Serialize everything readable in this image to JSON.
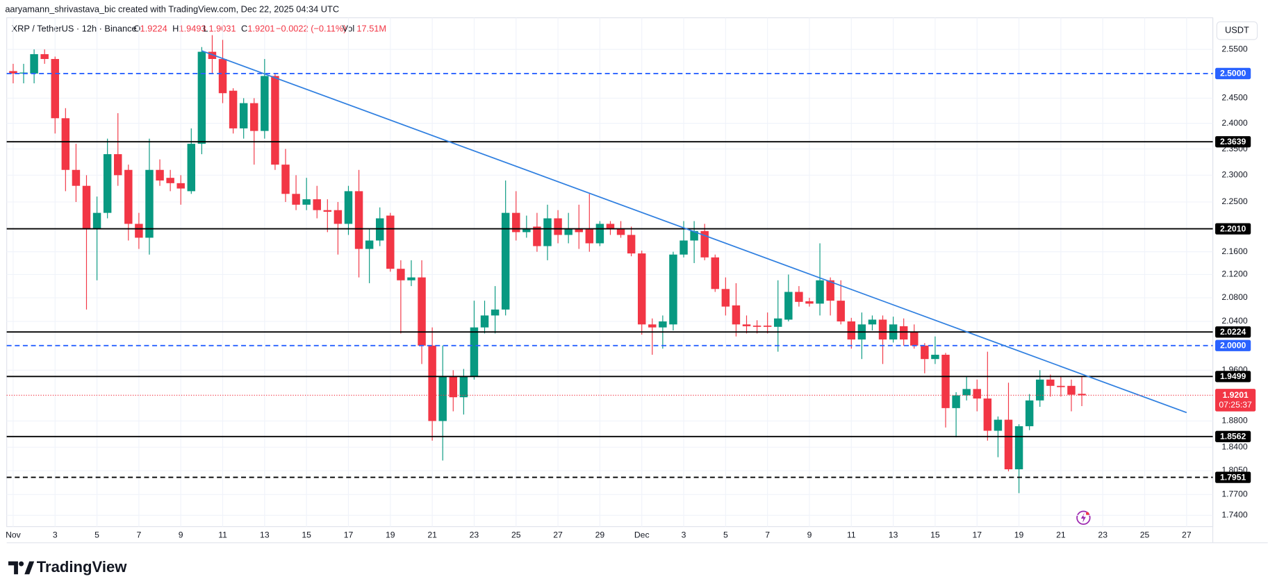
{
  "header": {
    "author_line": "aaryamann_shrivastava_bic created with TradingView.com, Dec 22, 2025 04:34 UTC",
    "symbol": "XRP / TetherUS · 12h · Binance",
    "o": "O",
    "open": "1.9224",
    "h": "H",
    "high": "1.9493",
    "l": "L",
    "low": "1.9031",
    "c": "C",
    "close": "1.9201",
    "change": "−0.0022 (−0.11%)",
    "vol_label": "Vol",
    "volume": "17.51M",
    "currency": "USDT"
  },
  "footer": {
    "brand": "TradingView"
  },
  "chart_data": {
    "type": "candlestick",
    "log_scale": true,
    "grid": true,
    "up_color": "#089981",
    "down_color": "#f23645",
    "categories": [
      "Nov",
      null,
      null,
      null,
      "3",
      null,
      null,
      null,
      "5",
      null,
      null,
      null,
      "7",
      null,
      null,
      null,
      "9",
      null,
      null,
      null,
      "11",
      null,
      null,
      null,
      "13",
      null,
      null,
      null,
      "15",
      null,
      null,
      null,
      "17",
      null,
      null,
      null,
      "19",
      null,
      null,
      null,
      "21",
      null,
      null,
      null,
      "23",
      null,
      null,
      null,
      "25",
      null,
      null,
      null,
      "27",
      null,
      null,
      null,
      "29",
      null,
      null,
      null,
      "Dec",
      null,
      null,
      null,
      "3",
      null,
      null,
      null,
      "5",
      null,
      null,
      null,
      "7",
      null,
      null,
      null,
      "9",
      null,
      null,
      null,
      "11",
      null,
      null,
      null,
      "13",
      null,
      null,
      null,
      "15",
      null,
      null,
      null,
      "17",
      null,
      null,
      null,
      "19",
      null,
      null,
      null,
      "21",
      null,
      null,
      null,
      "23",
      null,
      null,
      null,
      "25",
      null,
      null,
      null,
      "27",
      null,
      null
    ],
    "open": [
      2.505,
      2.5,
      2.5,
      2.54,
      2.53,
      2.41,
      2.31,
      2.28,
      2.2,
      2.23,
      2.34,
      2.31,
      2.21,
      2.185,
      2.31,
      2.295,
      2.285,
      2.27,
      2.36,
      2.545,
      2.53,
      2.465,
      2.39,
      2.44,
      2.385,
      2.495,
      2.32,
      2.265,
      2.245,
      2.255,
      2.235,
      2.235,
      2.21,
      2.27,
      2.165,
      2.18,
      2.225,
      2.13,
      2.11,
      2.115,
      2.0,
      1.88,
      1.95,
      1.917,
      1.95,
      2.03,
      2.05,
      2.06,
      2.23,
      2.195,
      2.205,
      2.17,
      2.22,
      2.19,
      2.2,
      2.2,
      2.175,
      2.21,
      2.2,
      2.19,
      2.157,
      2.035,
      2.03,
      2.035,
      2.155,
      2.18,
      2.197,
      2.15,
      2.095,
      2.067,
      2.035,
      2.033,
      2.033,
      2.031,
      2.043,
      2.09,
      2.074,
      2.07,
      2.11,
      2.075,
      2.04,
      2.01,
      2.035,
      2.043,
      2.01,
      2.032,
      2.022,
      2.0,
      1.978,
      1.985,
      1.9,
      1.92,
      1.93,
      1.915,
      1.865,
      1.882,
      1.807,
      1.872,
      1.912,
      1.945,
      1.935,
      1.935,
      1.9224,
      null,
      null,
      null,
      null,
      null,
      null,
      null,
      null,
      null,
      null,
      null,
      null
    ],
    "high": [
      2.52,
      2.52,
      2.55,
      2.55,
      2.535,
      2.43,
      2.36,
      2.3,
      2.26,
      2.37,
      2.42,
      2.32,
      2.23,
      2.37,
      2.33,
      2.31,
      2.3,
      2.39,
      2.555,
      2.58,
      2.57,
      2.47,
      2.45,
      2.45,
      2.53,
      2.5,
      2.35,
      2.3,
      2.295,
      2.28,
      2.255,
      2.25,
      2.28,
      2.31,
      2.2,
      2.24,
      2.23,
      2.145,
      2.145,
      2.145,
      2.03,
      2.0,
      1.96,
      1.962,
      2.075,
      2.075,
      2.1,
      2.29,
      2.27,
      2.225,
      2.23,
      2.245,
      2.235,
      2.23,
      2.245,
      2.265,
      2.215,
      2.215,
      2.215,
      2.205,
      2.162,
      2.045,
      2.05,
      2.16,
      2.215,
      2.215,
      2.21,
      2.155,
      2.115,
      2.105,
      2.05,
      2.042,
      2.055,
      2.11,
      2.12,
      2.1,
      2.08,
      2.175,
      2.115,
      2.11,
      2.046,
      2.055,
      2.05,
      2.05,
      2.048,
      2.045,
      2.035,
      2.004,
      2.015,
      1.988,
      1.925,
      1.95,
      1.945,
      1.99,
      1.887,
      1.94,
      1.875,
      1.922,
      1.96,
      1.953,
      1.95,
      1.945,
      1.9493,
      null,
      null,
      null,
      null,
      null,
      null,
      null,
      null,
      null,
      null,
      null,
      null
    ],
    "low": [
      2.48,
      2.48,
      2.48,
      2.52,
      2.38,
      2.27,
      2.25,
      2.06,
      2.11,
      2.22,
      2.28,
      2.18,
      2.165,
      2.155,
      2.28,
      2.27,
      2.245,
      2.265,
      2.34,
      2.5,
      2.44,
      2.38,
      2.37,
      2.32,
      2.37,
      2.31,
      2.25,
      2.235,
      2.235,
      2.22,
      2.195,
      2.155,
      2.19,
      2.115,
      2.105,
      2.17,
      2.125,
      2.02,
      2.1,
      1.97,
      1.85,
      1.82,
      1.895,
      1.89,
      1.945,
      2.02,
      2.02,
      2.05,
      2.18,
      2.185,
      2.16,
      2.145,
      2.175,
      2.175,
      2.165,
      2.16,
      2.17,
      2.19,
      2.185,
      2.152,
      2.018,
      1.985,
      1.995,
      2.025,
      2.15,
      2.14,
      2.145,
      2.09,
      2.05,
      2.015,
      2.02,
      2.02,
      2.02,
      1.99,
      2.04,
      2.065,
      2.065,
      2.05,
      2.05,
      2.035,
      1.995,
      1.978,
      2.025,
      1.97,
      2.005,
      2.0,
      1.995,
      1.955,
      1.97,
      1.87,
      1.855,
      1.912,
      1.895,
      1.85,
      1.825,
      1.804,
      1.772,
      1.866,
      1.902,
      1.918,
      1.918,
      1.895,
      1.9031,
      null,
      null,
      null,
      null,
      null,
      null,
      null,
      null,
      null,
      null,
      null,
      null
    ],
    "close": [
      2.5,
      2.502,
      2.54,
      2.53,
      2.41,
      2.31,
      2.28,
      2.2,
      2.23,
      2.34,
      2.3,
      2.21,
      2.185,
      2.31,
      2.29,
      2.285,
      2.275,
      2.36,
      2.545,
      2.53,
      2.46,
      2.39,
      2.44,
      2.385,
      2.495,
      2.32,
      2.265,
      2.245,
      2.255,
      2.235,
      2.232,
      2.21,
      2.27,
      2.165,
      2.18,
      2.22,
      2.13,
      2.11,
      2.115,
      2.0,
      1.88,
      1.95,
      1.917,
      1.95,
      2.03,
      2.05,
      2.06,
      2.23,
      2.195,
      2.2,
      2.17,
      2.22,
      2.19,
      2.2,
      2.195,
      2.175,
      2.21,
      2.2,
      2.19,
      2.157,
      2.035,
      2.03,
      2.04,
      2.155,
      2.18,
      2.197,
      2.15,
      2.095,
      2.065,
      2.035,
      2.032,
      2.031,
      2.031,
      2.045,
      2.09,
      2.073,
      2.07,
      2.11,
      2.075,
      2.04,
      2.01,
      2.035,
      2.043,
      2.01,
      2.035,
      2.01,
      2.0,
      1.978,
      1.985,
      1.9,
      1.92,
      1.93,
      1.915,
      1.865,
      1.882,
      1.807,
      1.872,
      1.912,
      1.945,
      1.935,
      1.933,
      1.921,
      1.9201,
      null,
      null,
      null,
      null,
      null,
      null,
      null,
      null,
      null,
      null,
      null,
      null
    ],
    "ylim": [
      1.724,
      2.617
    ],
    "yticks": [
      {
        "value": 2.55,
        "label": "2.5500"
      },
      {
        "value": 2.45,
        "label": "2.4500"
      },
      {
        "value": 2.4,
        "label": "2.4000"
      },
      {
        "value": 2.35,
        "label": "2.3500"
      },
      {
        "value": 2.3,
        "label": "2.3000"
      },
      {
        "value": 2.25,
        "label": "2.2500"
      },
      {
        "value": 2.16,
        "label": "2.1600"
      },
      {
        "value": 2.12,
        "label": "2.1200"
      },
      {
        "value": 2.08,
        "label": "2.0800"
      },
      {
        "value": 2.04,
        "label": "2.0400"
      },
      {
        "value": 1.96,
        "label": "1.9600"
      },
      {
        "value": 1.88,
        "label": "1.8800"
      },
      {
        "value": 1.84,
        "label": "1.8400"
      },
      {
        "value": 1.805,
        "label": "1.8050"
      },
      {
        "value": 1.77,
        "label": "1.7700"
      },
      {
        "value": 1.74,
        "label": "1.7400"
      }
    ],
    "levels": [
      {
        "value": 2.5,
        "label": "2.5000",
        "color": "#2962ff",
        "dashed": true
      },
      {
        "value": 2.3639,
        "label": "2.3639",
        "color": "#000000",
        "dashed": false
      },
      {
        "value": 2.201,
        "label": "2.2010",
        "color": "#000000",
        "dashed": false
      },
      {
        "value": 2.0224,
        "label": "2.0224",
        "color": "#000000",
        "dashed": false
      },
      {
        "value": 2.0,
        "label": "2.0000",
        "color": "#2962ff",
        "dashed": true
      },
      {
        "value": 1.9499,
        "label": "1.9499",
        "color": "#000000",
        "dashed": false
      },
      {
        "value": 1.8562,
        "label": "1.8562",
        "color": "#000000",
        "dashed": false
      },
      {
        "value": 1.7951,
        "label": "1.7951",
        "color": "#000000",
        "dashed": true
      }
    ],
    "trendline": {
      "x0": 18,
      "y0": 2.547,
      "x1": 112,
      "y1": 1.893,
      "color": "#2f7fe0"
    },
    "last_price": {
      "value": 1.9201,
      "label": "1.9201",
      "countdown": "07:25:37",
      "color": "#f23645"
    }
  }
}
